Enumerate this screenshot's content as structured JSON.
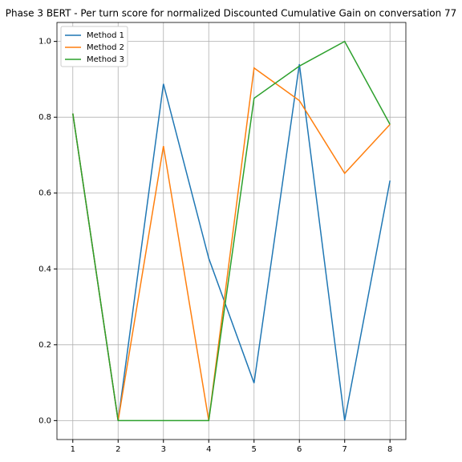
{
  "chart_data": {
    "type": "line",
    "title": "Phase 3 BERT - Per turn score for normalized Discounted Cumulative Gain on conversation 77",
    "x": [
      1,
      2,
      3,
      4,
      5,
      6,
      7,
      8
    ],
    "series": [
      {
        "name": "Method 1",
        "color": "#1f77b4",
        "values": [
          0.81,
          0,
          0.888,
          0.428,
          0.099,
          0.94,
          0,
          0.633
        ]
      },
      {
        "name": "Method 2",
        "color": "#ff7f0e",
        "values": [
          0.81,
          0,
          0.724,
          0,
          0.93,
          0.844,
          0.652,
          0.781
        ]
      },
      {
        "name": "Method 3",
        "color": "#2ca02c",
        "values": [
          0.81,
          0,
          0,
          0,
          0.85,
          0.935,
          1.0,
          0.781
        ]
      }
    ],
    "xlim": [
      0.65,
      8.35
    ],
    "ylim": [
      -0.05,
      1.05
    ],
    "xticks": [
      1,
      2,
      3,
      4,
      5,
      6,
      7,
      8
    ],
    "yticks": [
      {
        "value": 0,
        "label": "0.0"
      },
      {
        "value": 0.2,
        "label": "0.2"
      },
      {
        "value": 0.4,
        "label": "0.4"
      },
      {
        "value": 0.6,
        "label": "0.6"
      },
      {
        "value": 0.8,
        "label": "0.8"
      },
      {
        "value": 1.0,
        "label": "1.0"
      }
    ],
    "grid": true,
    "legend": "upper-left"
  }
}
